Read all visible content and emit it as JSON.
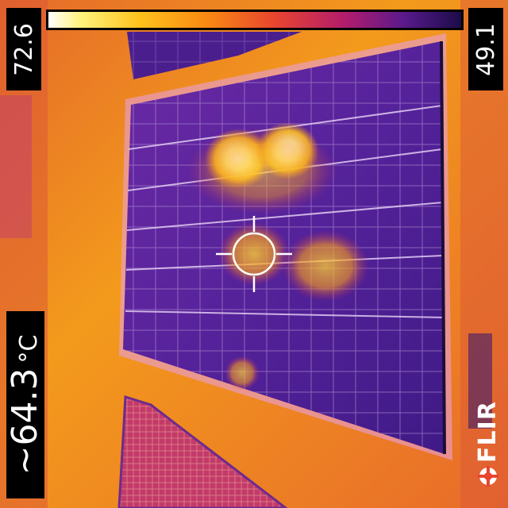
{
  "scale": {
    "max_value": "72.6",
    "min_value": "49.1"
  },
  "spot": {
    "value": "~64.3",
    "unit": "°C"
  },
  "brand": {
    "name": "FLIR"
  },
  "palette": {
    "hot": "#ffffff",
    "warm": "#ffc21d",
    "mid": "#f08a1e",
    "cool": "#b11c6c",
    "cold": "#1b0c4a"
  }
}
